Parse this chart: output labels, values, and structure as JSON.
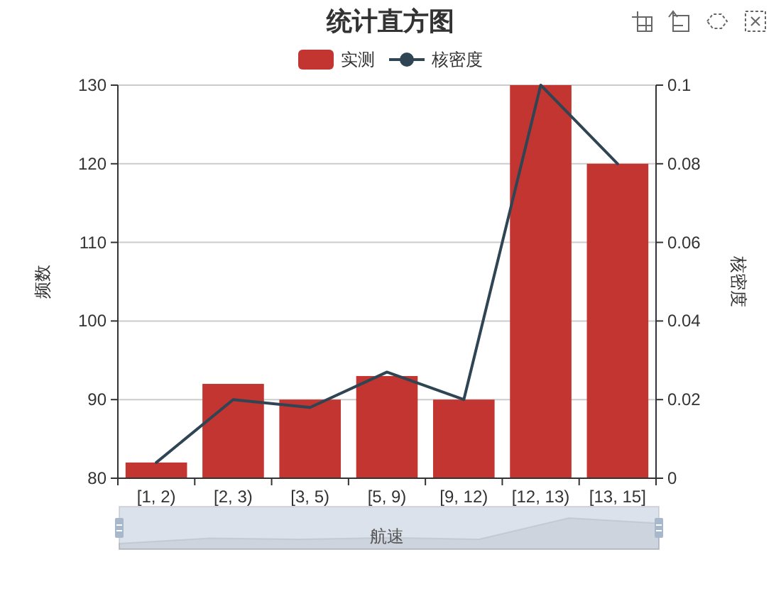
{
  "chart_data": {
    "type": "bar",
    "title": "统计直方图",
    "categories": [
      "[1, 2)",
      "[2, 3)",
      "[3, 5)",
      "[5, 9)",
      "[9, 12)",
      "[12, 13)",
      "[13, 15]"
    ],
    "series": [
      {
        "name": "实测",
        "color": "#c23531",
        "values": [
          82,
          92,
          90,
          93,
          90,
          130,
          120
        ]
      },
      {
        "name": "核密度",
        "type": "line",
        "axis": "y2",
        "color": "#2f4554",
        "values": [
          0.004,
          0.02,
          0.018,
          0.027,
          0.02,
          0.1,
          0.08
        ]
      }
    ],
    "xlabel": "航速",
    "ylabel": "频数",
    "y2label": "核密度",
    "ylim": [
      80,
      130
    ],
    "yticks": [
      80,
      90,
      100,
      110,
      120,
      130
    ],
    "y2lim": [
      0,
      0.1
    ],
    "y2ticks": [
      0,
      0.02,
      0.04,
      0.06,
      0.08,
      0.1
    ],
    "grid": "y",
    "legend": "top",
    "marker": "none"
  }
}
